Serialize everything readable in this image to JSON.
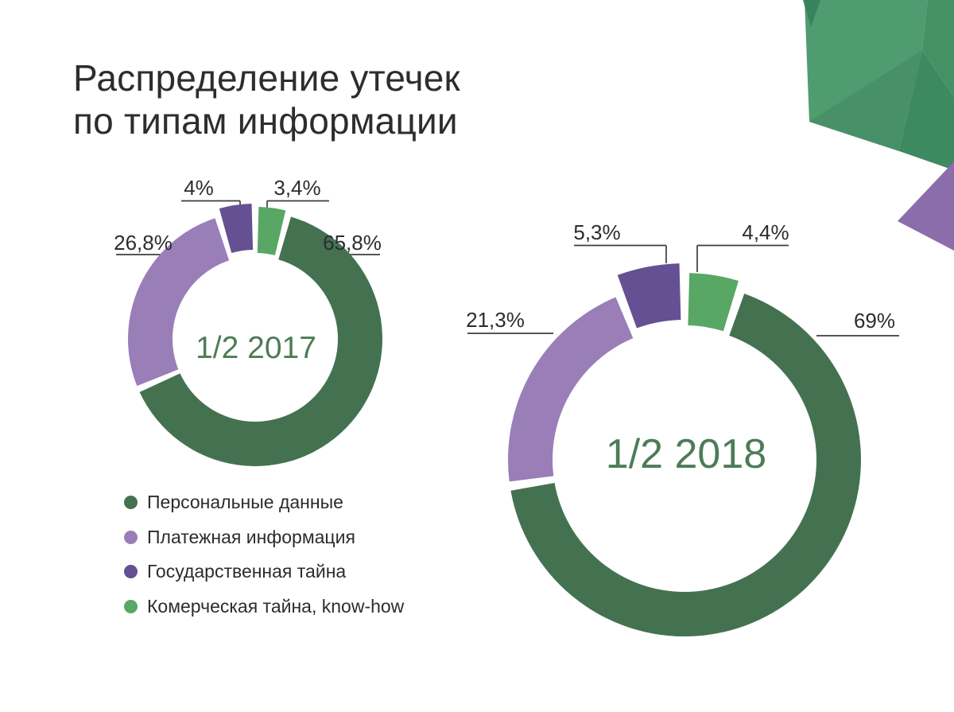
{
  "title": "Распределение утечек по типам информации",
  "chart_data": [
    {
      "type": "pie",
      "subtype": "donut",
      "center_label": "1/2 2017",
      "legend_position": "bottom-left",
      "segments": [
        {
          "label": "Персональные данные",
          "value": 65.8,
          "display": "65,8%",
          "color": "#447251",
          "exploded": false
        },
        {
          "label": "Платежная информация",
          "value": 26.8,
          "display": "26,8%",
          "color": "#9a7eb8",
          "exploded": false
        },
        {
          "label": "Государственная тайна",
          "value": 4,
          "display": "4%",
          "color": "#645092",
          "exploded": true
        },
        {
          "label": "Комерческая тайна, know-how",
          "value": 3.4,
          "display": "3,4%",
          "color": "#58a765",
          "exploded": true
        }
      ]
    },
    {
      "type": "pie",
      "subtype": "donut",
      "center_label": "1/2 2018",
      "legend_position": "bottom-left",
      "segments": [
        {
          "label": "Персональные данные",
          "value": 69,
          "display": "69%",
          "color": "#447251",
          "exploded": false
        },
        {
          "label": "Платежная информация",
          "value": 21.3,
          "display": "21,3%",
          "color": "#9a7eb8",
          "exploded": false
        },
        {
          "label": "Государственная тайна",
          "value": 5.3,
          "display": "5,3%",
          "color": "#645092",
          "exploded": true
        },
        {
          "label": "Комерческая тайна, know-how",
          "value": 4.4,
          "display": "4,4%",
          "color": "#58a765",
          "exploded": true
        }
      ]
    }
  ],
  "legend": {
    "items": [
      {
        "label": "Персональные данные",
        "color": "#447251"
      },
      {
        "label": "Платежная информация",
        "color": "#9a7eb8"
      },
      {
        "label": "Государственная тайна",
        "color": "#645092"
      },
      {
        "label": "Комерческая тайна, know-how",
        "color": "#58a765"
      }
    ]
  },
  "center_label_color": "#4d7c57",
  "label_color": "#2d2d2d",
  "line_color": "#3d3d3d",
  "decoration": {
    "greens": [
      "#4f9c70",
      "#38835d",
      "#469066",
      "#3e8a60",
      "#489168"
    ],
    "purple": "#8c6dac"
  }
}
